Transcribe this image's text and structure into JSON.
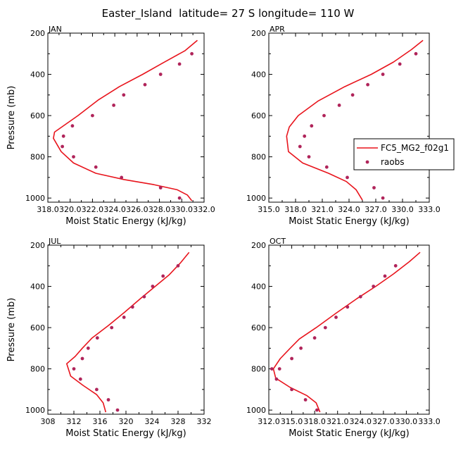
{
  "figure": {
    "title": "Easter_Island  latitude= 27 S longitude= 110 W"
  },
  "legend": {
    "entries": [
      {
        "label": "FC5_MG2_f02g1",
        "style": "line",
        "color": "#e8141c"
      },
      {
        "label": "raobs",
        "style": "marker",
        "color": "#b0245a"
      }
    ]
  },
  "colors": {
    "model": "#e8141c",
    "obs": "#b0245a",
    "axis": "#000000"
  },
  "chart_data": [
    {
      "type": "line",
      "panel_label": "JAN",
      "xlabel": "Moist Static Energy (kJ/kg)",
      "ylabel": "Pressure (mb)",
      "xlim": [
        318.0,
        332.0
      ],
      "ylim": [
        1020,
        200
      ],
      "xticks": [
        318.0,
        320.0,
        322.0,
        324.0,
        326.0,
        328.0,
        330.0,
        332.0
      ],
      "xtick_labels": [
        "318.0",
        "320.0",
        "322.0",
        "324.0",
        "326.0",
        "328.0",
        "330.0",
        "332.0"
      ],
      "yticks": [
        200,
        400,
        600,
        800,
        1000
      ],
      "ytick_labels": [
        "200",
        "400",
        "600",
        "800",
        "1000"
      ],
      "series": [
        {
          "name": "FC5_MG2_f02g1",
          "kind": "line",
          "x": [
            331.4,
            330.3,
            328.3,
            326.5,
            324.4,
            322.5,
            320.7,
            318.6,
            318.5,
            319.2,
            320.3,
            322.3,
            324.8,
            327.5,
            329.6,
            330.5,
            330.9
          ],
          "y": [
            235,
            285,
            345,
            400,
            460,
            525,
            600,
            680,
            710,
            775,
            830,
            880,
            910,
            935,
            960,
            985,
            1013
          ]
        },
        {
          "name": "raobs",
          "kind": "scatter",
          "x": [
            330.9,
            329.8,
            328.1,
            326.7,
            324.8,
            323.9,
            322.0,
            320.2,
            319.4,
            319.3,
            320.3,
            322.3,
            324.6,
            328.1,
            329.8
          ],
          "y": [
            300,
            350,
            400,
            450,
            500,
            550,
            600,
            650,
            700,
            750,
            800,
            850,
            900,
            950,
            1000
          ]
        }
      ]
    },
    {
      "type": "line",
      "panel_label": "APR",
      "xlabel": "Moist Static Energy (kJ/kg)",
      "ylabel": "",
      "xlim": [
        315.0,
        333.0
      ],
      "ylim": [
        1020,
        200
      ],
      "xticks": [
        315.0,
        318.0,
        321.0,
        324.0,
        327.0,
        330.0,
        333.0
      ],
      "xtick_labels": [
        "315.0",
        "318.0",
        "321.0",
        "324.0",
        "327.0",
        "330.0",
        "333.0"
      ],
      "yticks": [
        200,
        400,
        600,
        800,
        1000
      ],
      "ytick_labels": [
        "200",
        "400",
        "600",
        "800",
        "1000"
      ],
      "series": [
        {
          "name": "FC5_MG2_f02g1",
          "kind": "line",
          "x": [
            332.3,
            331.0,
            329.0,
            326.5,
            323.5,
            320.5,
            318.3,
            317.3,
            317.0,
            317.2,
            318.8,
            321.7,
            323.7,
            324.8,
            325.5
          ],
          "y": [
            235,
            280,
            340,
            400,
            460,
            530,
            600,
            655,
            700,
            775,
            830,
            880,
            920,
            960,
            1010
          ]
        },
        {
          "name": "raobs",
          "kind": "scatter",
          "x": [
            331.5,
            329.7,
            327.8,
            326.1,
            324.4,
            322.9,
            321.2,
            319.8,
            319.0,
            318.5,
            319.5,
            321.5,
            323.8,
            326.8,
            327.8
          ],
          "y": [
            300,
            350,
            400,
            450,
            500,
            550,
            600,
            650,
            700,
            750,
            800,
            850,
            900,
            950,
            1000
          ]
        }
      ]
    },
    {
      "type": "line",
      "panel_label": "JUL",
      "xlabel": "Moist Static Energy (kJ/kg)",
      "ylabel": "Pressure (mb)",
      "xlim": [
        308,
        332
      ],
      "ylim": [
        1020,
        200
      ],
      "xticks": [
        308,
        312,
        316,
        320,
        324,
        328,
        332
      ],
      "xtick_labels": [
        "308",
        "312",
        "316",
        "320",
        "324",
        "328",
        "332"
      ],
      "yticks": [
        200,
        400,
        600,
        800,
        1000
      ],
      "ytick_labels": [
        "200",
        "400",
        "600",
        "800",
        "1000"
      ],
      "series": [
        {
          "name": "FC5_MG2_f02g1",
          "kind": "line",
          "x": [
            329.7,
            328.4,
            326.6,
            324.5,
            322.2,
            319.8,
            317.3,
            314.8,
            313.3,
            312.2,
            310.9,
            311.5,
            313.4,
            315.5,
            316.5,
            316.9
          ],
          "y": [
            235,
            285,
            345,
            400,
            460,
            525,
            590,
            650,
            700,
            740,
            775,
            835,
            880,
            925,
            965,
            1010
          ]
        },
        {
          "name": "raobs",
          "kind": "scatter",
          "x": [
            328.0,
            325.7,
            324.1,
            322.8,
            321.0,
            319.7,
            317.8,
            315.6,
            314.2,
            313.3,
            312.0,
            313.0,
            315.5,
            317.3,
            318.7
          ],
          "y": [
            300,
            350,
            400,
            450,
            500,
            550,
            600,
            650,
            700,
            750,
            800,
            850,
            900,
            950,
            1000
          ]
        }
      ]
    },
    {
      "type": "line",
      "panel_label": "OCT",
      "xlabel": "Moist Static Energy (kJ/kg)",
      "ylabel": "",
      "xlim": [
        312.0,
        333.0
      ],
      "ylim": [
        1020,
        200
      ],
      "xticks": [
        312.0,
        315.0,
        318.0,
        321.0,
        324.0,
        327.0,
        330.0,
        333.0
      ],
      "xtick_labels": [
        "312.0",
        "315.0",
        "318.0",
        "321.0",
        "324.0",
        "327.0",
        "330.0",
        "333.0"
      ],
      "yticks": [
        200,
        400,
        600,
        800,
        1000
      ],
      "ytick_labels": [
        "200",
        "400",
        "600",
        "800",
        "1000"
      ],
      "series": [
        {
          "name": "FC5_MG2_f02g1",
          "kind": "line",
          "x": [
            331.8,
            330.4,
            328.3,
            326.0,
            323.5,
            320.8,
            318.2,
            316.0,
            314.8,
            313.5,
            312.6,
            312.9,
            314.8,
            317.0,
            318.2,
            318.7
          ],
          "y": [
            235,
            280,
            340,
            400,
            460,
            530,
            600,
            655,
            700,
            750,
            800,
            845,
            890,
            930,
            965,
            1010
          ]
        },
        {
          "name": "raobs",
          "kind": "scatter",
          "x": [
            328.6,
            327.2,
            325.7,
            324.0,
            322.3,
            320.8,
            319.4,
            318.0,
            316.2,
            315.0,
            313.4,
            312.4,
            313.0,
            315.0,
            316.8,
            318.3
          ],
          "y": [
            300,
            350,
            400,
            450,
            500,
            550,
            600,
            650,
            700,
            750,
            800,
            800,
            850,
            900,
            950,
            1000
          ]
        }
      ]
    }
  ]
}
